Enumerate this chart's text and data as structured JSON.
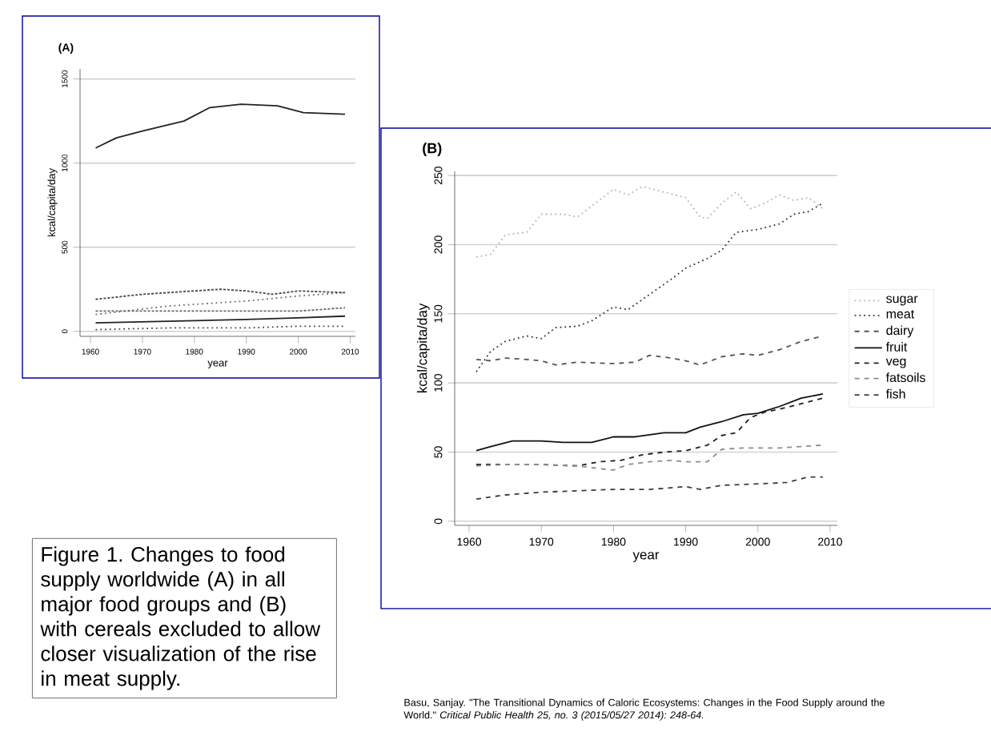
{
  "chart_data": [
    {
      "type": "line",
      "title": "(A)",
      "xlabel": "year",
      "ylabel": "kcal/capita/day",
      "xlim": [
        1958,
        2011
      ],
      "ylim": [
        -30,
        1560
      ],
      "xticks": [
        1960,
        1970,
        1980,
        1990,
        2000,
        2010
      ],
      "yticks": [
        0,
        500,
        1000,
        1500
      ],
      "grid": "y",
      "legend": false,
      "annotations": [
        "Figure 1. Changes to food supply worldwide (A) in all major food groups and (B) with cereals excluded to allow closer visualization of the rise in meat supply."
      ],
      "series": [
        {
          "color": "#222222",
          "line_style": "solid",
          "x": [
            1961,
            1965,
            1970,
            1978,
            1983,
            1989,
            1996,
            2001,
            2009
          ],
          "values": [
            1090,
            1150,
            1190,
            1250,
            1330,
            1350,
            1340,
            1300,
            1290
          ]
        },
        {
          "color": "#444444",
          "line_style": "dashed",
          "x": [
            1961,
            1970,
            1980,
            1985,
            1990,
            1995,
            2000,
            2009
          ],
          "values": [
            190,
            220,
            240,
            250,
            240,
            220,
            240,
            230
          ]
        },
        {
          "color": "#666666",
          "line_style": "dotted",
          "x": [
            1961,
            1975,
            1990,
            2000,
            2009
          ],
          "values": [
            100,
            150,
            180,
            210,
            230
          ]
        },
        {
          "color": "#666666",
          "line_style": "dashed",
          "x": [
            1961,
            1975,
            1990,
            2000,
            2009
          ],
          "values": [
            120,
            120,
            120,
            120,
            140
          ]
        },
        {
          "color": "#222222",
          "line_style": "solid",
          "x": [
            1961,
            1975,
            1990,
            2000,
            2009
          ],
          "values": [
            50,
            60,
            70,
            80,
            90
          ]
        },
        {
          "color": "#444444",
          "line_style": "dotted",
          "x": [
            1961,
            1975,
            1990,
            2000,
            2009
          ],
          "values": [
            10,
            20,
            20,
            30,
            30
          ]
        }
      ]
    },
    {
      "type": "line",
      "title": "(B)",
      "xlabel": "year",
      "ylabel": "kcal/capita/day",
      "xlim": [
        1958,
        2011
      ],
      "ylim": [
        -3,
        253
      ],
      "xticks": [
        1960,
        1970,
        1980,
        1990,
        2000,
        2010
      ],
      "yticks": [
        0,
        50,
        100,
        150,
        200,
        250
      ],
      "grid": "y",
      "legend": "right",
      "annotations": [
        "Basu, Sanjay. \"The Transitional Dynamics of Caloric Ecosystems: Changes in the Food Supply around the World.\" *Critical Public Health 25, no. 3 (2015/05/27 2014): 248-64.*"
      ],
      "series": [
        {
          "name": "sugar",
          "color": "#b4b4b4",
          "line_style": "dotted",
          "x": [
            1961,
            1963,
            1965,
            1968,
            1970,
            1973,
            1975,
            1977,
            1980,
            1982,
            1984,
            1987,
            1990,
            1992,
            1993,
            1995,
            1997,
            1999,
            2001,
            2003,
            2005,
            2007,
            2009
          ],
          "values": [
            191,
            193,
            207,
            209,
            222,
            222,
            220,
            228,
            240,
            236,
            242,
            238,
            234,
            220,
            219,
            230,
            238,
            226,
            230,
            236,
            232,
            234,
            226
          ]
        },
        {
          "name": "meat",
          "color": "#333333",
          "line_style": "dotted",
          "x": [
            1961,
            1963,
            1965,
            1968,
            1970,
            1972,
            1975,
            1977,
            1980,
            1982,
            1985,
            1988,
            1990,
            1993,
            1995,
            1997,
            2000,
            2003,
            2005,
            2007,
            2009
          ],
          "values": [
            108,
            123,
            130,
            134,
            132,
            140,
            141,
            145,
            155,
            153,
            164,
            175,
            183,
            190,
            196,
            209,
            211,
            215,
            222,
            224,
            230
          ]
        },
        {
          "name": "dairy",
          "color": "#555555",
          "line_style": "dashed",
          "x": [
            1961,
            1963,
            1965,
            1968,
            1970,
            1972,
            1975,
            1980,
            1983,
            1985,
            1988,
            1990,
            1992,
            1995,
            1998,
            2000,
            2003,
            2006,
            2009
          ],
          "values": [
            117,
            116,
            118,
            117,
            116,
            113,
            115,
            114,
            115,
            120,
            118,
            116,
            113,
            119,
            121,
            120,
            124,
            130,
            134
          ]
        },
        {
          "name": "fruit",
          "color": "#111111",
          "line_style": "solid",
          "x": [
            1961,
            1963,
            1966,
            1970,
            1973,
            1977,
            1980,
            1983,
            1987,
            1990,
            1992,
            1995,
            1998,
            2000,
            2003,
            2006,
            2009
          ],
          "values": [
            51,
            54,
            58,
            58,
            57,
            57,
            61,
            61,
            64,
            64,
            68,
            72,
            77,
            78,
            83,
            89,
            92
          ]
        },
        {
          "name": "veg",
          "color": "#222222",
          "line_style": "dashed",
          "x": [
            1961,
            1965,
            1970,
            1975,
            1978,
            1981,
            1984,
            1987,
            1990,
            1993,
            1995,
            1997,
            1999,
            2001,
            2003,
            2006,
            2009
          ],
          "values": [
            41,
            41,
            41,
            40,
            43,
            44,
            48,
            50,
            51,
            55,
            62,
            64,
            75,
            79,
            81,
            85,
            89
          ]
        },
        {
          "name": "fatsoils",
          "color": "#8c8c8c",
          "line_style": "dashed",
          "x": [
            1961,
            1965,
            1970,
            1975,
            1978,
            1980,
            1982,
            1985,
            1988,
            1990,
            1993,
            1995,
            1998,
            2000,
            2003,
            2006,
            2009
          ],
          "values": [
            40,
            41,
            41,
            40,
            38,
            37,
            41,
            43,
            44,
            43,
            43,
            52,
            53,
            53,
            53,
            54,
            55
          ]
        },
        {
          "name": "fish",
          "color": "#3c3c3c",
          "line_style": "dashed",
          "x": [
            1961,
            1965,
            1970,
            1975,
            1980,
            1985,
            1990,
            1992,
            1995,
            2000,
            2004,
            2007,
            2009
          ],
          "values": [
            16,
            19,
            21,
            22,
            23,
            23,
            25,
            23,
            26,
            27,
            28,
            32,
            32
          ]
        }
      ]
    }
  ]
}
